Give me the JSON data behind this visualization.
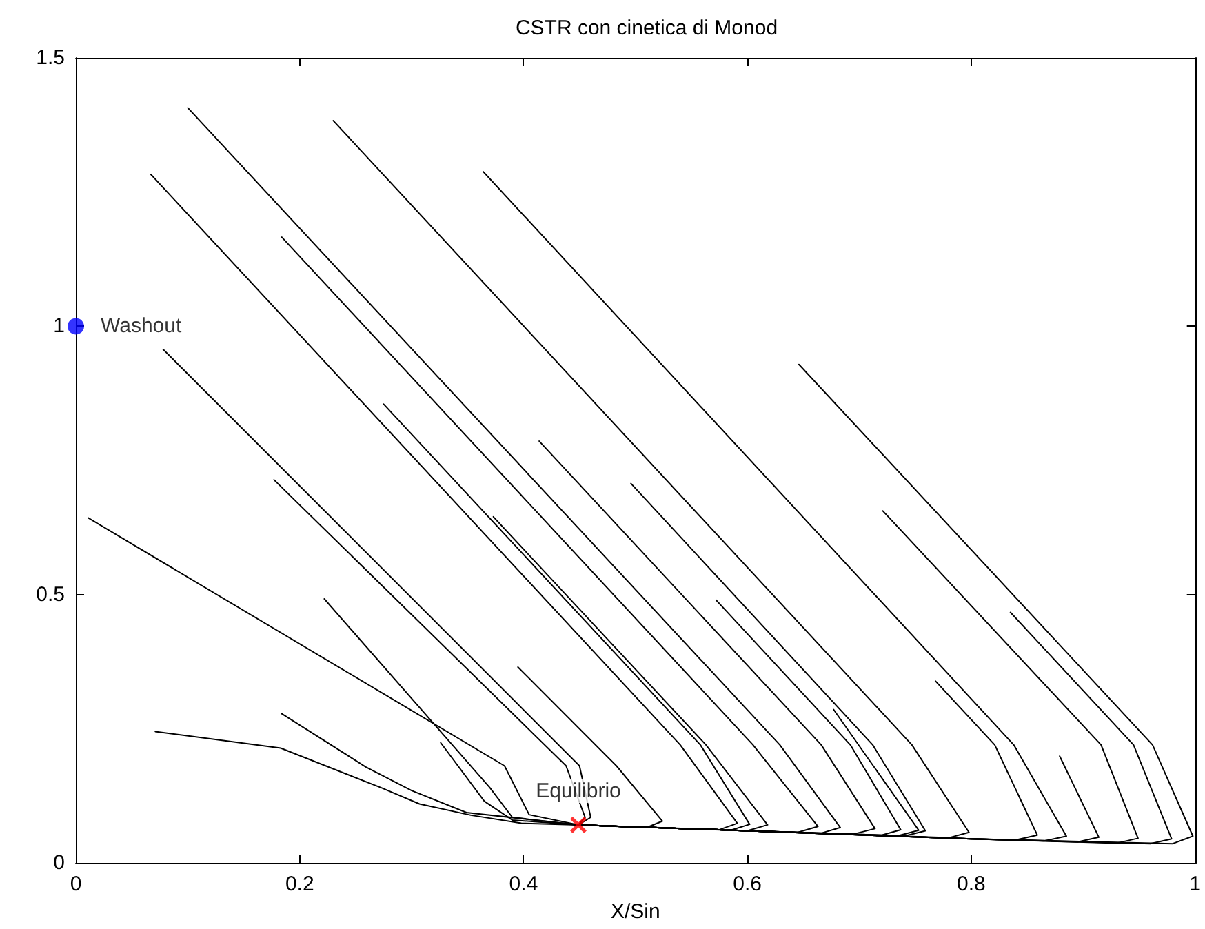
{
  "chart_data": {
    "type": "line",
    "title": "CSTR con cinetica di Monod",
    "xlabel": "X/Sin",
    "xlim": [
      0,
      1
    ],
    "xticks": [
      0,
      0.2,
      0.4,
      0.6,
      0.8,
      1
    ],
    "ylim": [
      0,
      1.5
    ],
    "yticks": [
      0,
      0.5,
      1,
      1.5
    ],
    "marker": "none",
    "line_style": "solid",
    "series": [
      {
        "color": "#000000",
        "x": [
          0.1,
          0.629,
          0.683,
          0.665,
          0.6,
          0.449
        ],
        "values": [
          1.407,
          0.22,
          0.066,
          0.055,
          0.06,
          0.071
        ]
      },
      {
        "color": "#000000",
        "x": [
          0.23,
          0.747,
          0.798,
          0.78,
          0.6,
          0.449
        ],
        "values": [
          1.383,
          0.22,
          0.057,
          0.047,
          0.06,
          0.071
        ]
      },
      {
        "color": "#000000",
        "x": [
          0.364,
          0.838,
          0.885,
          0.865,
          0.8,
          0.6,
          0.449
        ],
        "values": [
          1.288,
          0.22,
          0.05,
          0.041,
          0.045,
          0.06,
          0.071
        ]
      },
      {
        "color": "#000000",
        "x": [
          0.067,
          0.54,
          0.591,
          0.575,
          0.449
        ],
        "values": [
          1.283,
          0.22,
          0.074,
          0.062,
          0.071
        ]
      },
      {
        "color": "#000000",
        "x": [
          0.184,
          0.605,
          0.663,
          0.645,
          0.6,
          0.449
        ],
        "values": [
          1.166,
          0.22,
          0.068,
          0.057,
          0.06,
          0.071
        ]
      },
      {
        "color": "#000000",
        "x": [
          0.078,
          0.45,
          0.46,
          0.449
        ],
        "values": [
          0.957,
          0.181,
          0.085,
          0.071
        ]
      },
      {
        "color": "#000000",
        "x": [
          0.275,
          0.558,
          0.602,
          0.585,
          0.449
        ],
        "values": [
          0.855,
          0.22,
          0.072,
          0.061,
          0.071
        ]
      },
      {
        "color": "#000000",
        "x": [
          0.414,
          0.666,
          0.714,
          0.695,
          0.6,
          0.449
        ],
        "values": [
          0.786,
          0.22,
          0.064,
          0.054,
          0.06,
          0.071
        ]
      },
      {
        "color": "#000000",
        "x": [
          0.646,
          0.962,
          0.998,
          0.98,
          0.8,
          0.6,
          0.449
        ],
        "values": [
          0.929,
          0.22,
          0.05,
          0.036,
          0.045,
          0.06,
          0.071
        ]
      },
      {
        "color": "#000000",
        "x": [
          0.496,
          0.712,
          0.759,
          0.74,
          0.6,
          0.449
        ],
        "values": [
          0.707,
          0.22,
          0.06,
          0.05,
          0.06,
          0.071
        ]
      },
      {
        "color": "#000000",
        "x": [
          0.721,
          0.916,
          0.949,
          0.93,
          0.8,
          0.6,
          0.449
        ],
        "values": [
          0.656,
          0.22,
          0.046,
          0.037,
          0.045,
          0.06,
          0.071
        ]
      },
      {
        "color": "#000000",
        "x": [
          0.177,
          0.438,
          0.455,
          0.449
        ],
        "values": [
          0.714,
          0.181,
          0.085,
          0.071
        ]
      },
      {
        "color": "#000000",
        "x": [
          0.373,
          0.563,
          0.618,
          0.6,
          0.449
        ],
        "values": [
          0.645,
          0.22,
          0.071,
          0.06,
          0.071
        ]
      },
      {
        "color": "#000000",
        "x": [
          0.011,
          0.383,
          0.405,
          0.449
        ],
        "values": [
          0.643,
          0.181,
          0.09,
          0.071
        ]
      },
      {
        "color": "#000000",
        "x": [
          0.835,
          0.945,
          0.979,
          0.96,
          0.8,
          0.6,
          0.449
        ],
        "values": [
          0.467,
          0.22,
          0.045,
          0.036,
          0.045,
          0.06,
          0.071
        ]
      },
      {
        "color": "#000000",
        "x": [
          0.222,
          0.37,
          0.39,
          0.449
        ],
        "values": [
          0.492,
          0.14,
          0.085,
          0.071
        ]
      },
      {
        "color": "#000000",
        "x": [
          0.768,
          0.821,
          0.859,
          0.84,
          0.8,
          0.6,
          0.449
        ],
        "values": [
          0.339,
          0.22,
          0.052,
          0.043,
          0.045,
          0.06,
          0.071
        ]
      },
      {
        "color": "#000000",
        "x": [
          0.677,
          0.753,
          0.735,
          0.6,
          0.449
        ],
        "values": [
          0.286,
          0.061,
          0.051,
          0.06,
          0.071
        ]
      },
      {
        "color": "#000000",
        "x": [
          0.879,
          0.914,
          0.895,
          0.8,
          0.6,
          0.449
        ],
        "values": [
          0.199,
          0.048,
          0.039,
          0.045,
          0.06,
          0.071
        ]
      },
      {
        "color": "#000000",
        "x": [
          0.395,
          0.483,
          0.524,
          0.51,
          0.449
        ],
        "values": [
          0.365,
          0.181,
          0.078,
          0.066,
          0.071
        ]
      },
      {
        "color": "#000000",
        "x": [
          0.326,
          0.365,
          0.39,
          0.449
        ],
        "values": [
          0.224,
          0.115,
          0.08,
          0.071
        ]
      },
      {
        "color": "#000000",
        "x": [
          0.184,
          0.259,
          0.3,
          0.349,
          0.449
        ],
        "values": [
          0.278,
          0.179,
          0.135,
          0.094,
          0.071
        ]
      },
      {
        "color": "#000000",
        "x": [
          0.071,
          0.183,
          0.273,
          0.307,
          0.353,
          0.398,
          0.449
        ],
        "values": [
          0.245,
          0.214,
          0.14,
          0.11,
          0.089,
          0.074,
          0.071
        ]
      },
      {
        "color": "#000000",
        "x": [
          0.572,
          0.692,
          0.737,
          0.72,
          0.6,
          0.449
        ],
        "values": [
          0.49,
          0.22,
          0.062,
          0.052,
          0.06,
          0.071
        ]
      },
      {
        "type": "scatter",
        "name": "Washout",
        "color": "#0000ff",
        "marker": "circle",
        "x": [
          0
        ],
        "values": [
          1
        ]
      },
      {
        "type": "scatter",
        "name": "Equilibrio",
        "color": "#ff0000",
        "marker": "cross",
        "x": [
          0.449
        ],
        "values": [
          0.071
        ]
      }
    ]
  }
}
